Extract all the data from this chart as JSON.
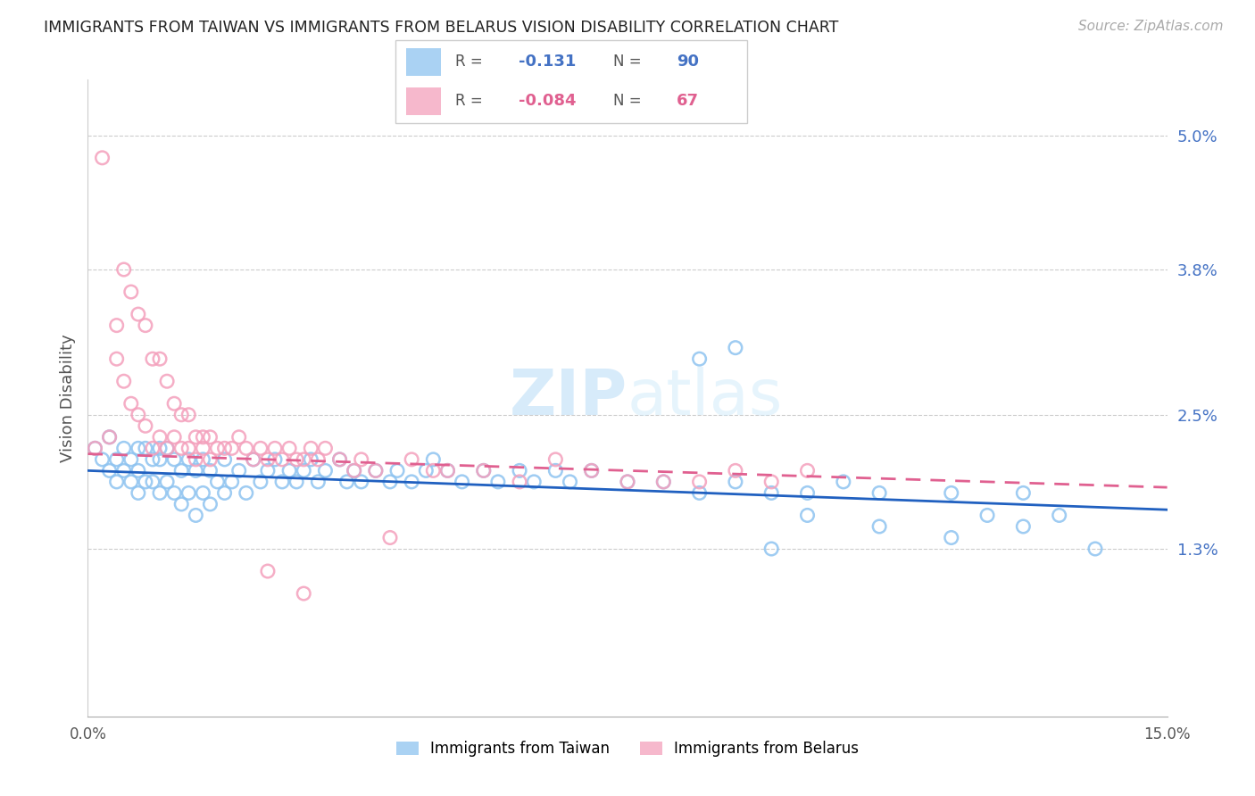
{
  "title": "IMMIGRANTS FROM TAIWAN VS IMMIGRANTS FROM BELARUS VISION DISABILITY CORRELATION CHART",
  "source": "Source: ZipAtlas.com",
  "ylabel": "Vision Disability",
  "right_yticks": [
    "5.0%",
    "3.8%",
    "2.5%",
    "1.3%"
  ],
  "right_ytick_vals": [
    0.05,
    0.038,
    0.025,
    0.013
  ],
  "xlim": [
    0.0,
    0.15
  ],
  "ylim": [
    -0.002,
    0.055
  ],
  "taiwan_color": "#8EC3F0",
  "belarus_color": "#F4A0BC",
  "taiwan_line_color": "#2060C0",
  "belarus_line_color": "#E06090",
  "taiwan_R": "-0.131",
  "taiwan_N": "90",
  "belarus_R": "-0.084",
  "belarus_N": "67",
  "watermark": "ZIPatlas",
  "taiwan_scatter_x": [
    0.001,
    0.002,
    0.003,
    0.003,
    0.004,
    0.004,
    0.005,
    0.005,
    0.006,
    0.006,
    0.007,
    0.007,
    0.007,
    0.008,
    0.008,
    0.009,
    0.009,
    0.01,
    0.01,
    0.01,
    0.011,
    0.011,
    0.012,
    0.012,
    0.013,
    0.013,
    0.014,
    0.014,
    0.015,
    0.015,
    0.016,
    0.016,
    0.017,
    0.017,
    0.018,
    0.019,
    0.019,
    0.02,
    0.021,
    0.022,
    0.023,
    0.024,
    0.025,
    0.026,
    0.027,
    0.028,
    0.029,
    0.03,
    0.031,
    0.032,
    0.033,
    0.035,
    0.036,
    0.037,
    0.038,
    0.04,
    0.042,
    0.043,
    0.045,
    0.047,
    0.048,
    0.05,
    0.052,
    0.055,
    0.057,
    0.06,
    0.062,
    0.065,
    0.067,
    0.07,
    0.075,
    0.08,
    0.085,
    0.09,
    0.095,
    0.1,
    0.105,
    0.11,
    0.12,
    0.13,
    0.085,
    0.09,
    0.095,
    0.1,
    0.11,
    0.12,
    0.125,
    0.13,
    0.135,
    0.14
  ],
  "taiwan_scatter_y": [
    0.022,
    0.021,
    0.023,
    0.02,
    0.021,
    0.019,
    0.022,
    0.02,
    0.021,
    0.019,
    0.022,
    0.02,
    0.018,
    0.022,
    0.019,
    0.021,
    0.019,
    0.022,
    0.021,
    0.018,
    0.022,
    0.019,
    0.021,
    0.018,
    0.02,
    0.017,
    0.021,
    0.018,
    0.02,
    0.016,
    0.021,
    0.018,
    0.02,
    0.017,
    0.019,
    0.021,
    0.018,
    0.019,
    0.02,
    0.018,
    0.021,
    0.019,
    0.02,
    0.021,
    0.019,
    0.02,
    0.019,
    0.02,
    0.021,
    0.019,
    0.02,
    0.021,
    0.019,
    0.02,
    0.019,
    0.02,
    0.019,
    0.02,
    0.019,
    0.02,
    0.021,
    0.02,
    0.019,
    0.02,
    0.019,
    0.02,
    0.019,
    0.02,
    0.019,
    0.02,
    0.019,
    0.019,
    0.018,
    0.019,
    0.018,
    0.018,
    0.019,
    0.018,
    0.018,
    0.018,
    0.03,
    0.031,
    0.013,
    0.016,
    0.015,
    0.014,
    0.016,
    0.015,
    0.016,
    0.013
  ],
  "belarus_scatter_x": [
    0.001,
    0.002,
    0.003,
    0.004,
    0.004,
    0.005,
    0.005,
    0.006,
    0.006,
    0.007,
    0.007,
    0.008,
    0.008,
    0.009,
    0.009,
    0.01,
    0.01,
    0.011,
    0.011,
    0.012,
    0.012,
    0.013,
    0.013,
    0.014,
    0.014,
    0.015,
    0.015,
    0.016,
    0.016,
    0.017,
    0.017,
    0.018,
    0.019,
    0.02,
    0.021,
    0.022,
    0.023,
    0.024,
    0.025,
    0.026,
    0.027,
    0.028,
    0.029,
    0.03,
    0.031,
    0.032,
    0.033,
    0.035,
    0.037,
    0.038,
    0.04,
    0.042,
    0.045,
    0.048,
    0.05,
    0.055,
    0.06,
    0.065,
    0.07,
    0.075,
    0.08,
    0.085,
    0.09,
    0.095,
    0.1,
    0.025,
    0.03
  ],
  "belarus_scatter_y": [
    0.022,
    0.048,
    0.023,
    0.033,
    0.03,
    0.038,
    0.028,
    0.036,
    0.026,
    0.034,
    0.025,
    0.033,
    0.024,
    0.03,
    0.022,
    0.03,
    0.023,
    0.028,
    0.022,
    0.026,
    0.023,
    0.025,
    0.022,
    0.025,
    0.022,
    0.023,
    0.021,
    0.023,
    0.022,
    0.023,
    0.021,
    0.022,
    0.022,
    0.022,
    0.023,
    0.022,
    0.021,
    0.022,
    0.021,
    0.022,
    0.021,
    0.022,
    0.021,
    0.021,
    0.022,
    0.021,
    0.022,
    0.021,
    0.02,
    0.021,
    0.02,
    0.014,
    0.021,
    0.02,
    0.02,
    0.02,
    0.019,
    0.021,
    0.02,
    0.019,
    0.019,
    0.019,
    0.02,
    0.019,
    0.02,
    0.011,
    0.009
  ]
}
